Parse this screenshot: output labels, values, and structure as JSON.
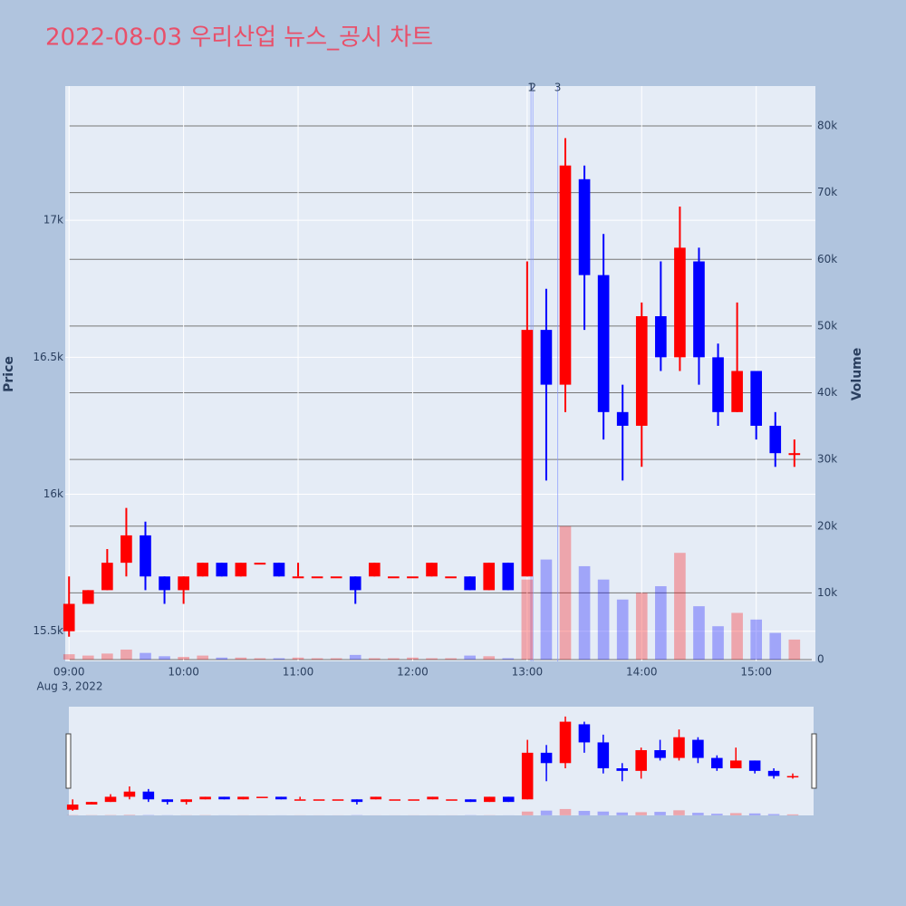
{
  "chart_data": {
    "type": "candlestick",
    "title": "2022-08-03 우리산업 뉴스_공시 차트",
    "y_label": "Price",
    "y2_label": "Volume",
    "x_date_label": "Aug 3, 2022",
    "increasing_color": "#ff0000",
    "decreasing_color": "#0000ff",
    "x": [
      "2022-08-03 09:00",
      "2022-08-03 09:10",
      "2022-08-03 09:20",
      "2022-08-03 09:30",
      "2022-08-03 09:40",
      "2022-08-03 09:50",
      "2022-08-03 10:00",
      "2022-08-03 10:10",
      "2022-08-03 10:20",
      "2022-08-03 10:30",
      "2022-08-03 10:40",
      "2022-08-03 10:50",
      "2022-08-03 11:00",
      "2022-08-03 11:10",
      "2022-08-03 11:20",
      "2022-08-03 11:30",
      "2022-08-03 11:40",
      "2022-08-03 11:50",
      "2022-08-03 12:00",
      "2022-08-03 12:10",
      "2022-08-03 12:20",
      "2022-08-03 12:30",
      "2022-08-03 12:40",
      "2022-08-03 12:50",
      "2022-08-03 13:00",
      "2022-08-03 13:10",
      "2022-08-03 13:20",
      "2022-08-03 13:30",
      "2022-08-03 13:40",
      "2022-08-03 13:50",
      "2022-08-03 14:00",
      "2022-08-03 14:10",
      "2022-08-03 14:20",
      "2022-08-03 14:30",
      "2022-08-03 14:40",
      "2022-08-03 14:50",
      "2022-08-03 15:00",
      "2022-08-03 15:10",
      "2022-08-03 15:20"
    ],
    "open": [
      15500,
      15600,
      15650,
      15750,
      15850,
      15700,
      15650,
      15700,
      15750,
      15700,
      15750,
      15750,
      15700,
      15700,
      15700,
      15700,
      15700,
      15700,
      15700,
      15700,
      15700,
      15700,
      15650,
      15750,
      15700,
      16600,
      16400,
      17150,
      16800,
      16300,
      16250,
      16650,
      16500,
      16850,
      16500,
      16300,
      16450,
      16250,
      16150
    ],
    "high": [
      15700,
      15650,
      15800,
      15950,
      15900,
      15700,
      15700,
      15750,
      15750,
      15750,
      15750,
      15750,
      15750,
      15700,
      15700,
      15700,
      15750,
      15700,
      15700,
      15750,
      15700,
      15700,
      15750,
      15750,
      16850,
      16750,
      17300,
      17200,
      16950,
      16400,
      16700,
      16850,
      17050,
      16900,
      16550,
      16700,
      16450,
      16300,
      16200
    ],
    "low": [
      15480,
      15600,
      15650,
      15700,
      15650,
      15600,
      15600,
      15700,
      15700,
      15700,
      15750,
      15700,
      15700,
      15700,
      15700,
      15600,
      15700,
      15700,
      15700,
      15700,
      15700,
      15650,
      15650,
      15650,
      15700,
      16050,
      16300,
      16600,
      16200,
      16050,
      16100,
      16450,
      16450,
      16400,
      16250,
      16300,
      16200,
      16100,
      16100
    ],
    "close": [
      15600,
      15650,
      15750,
      15850,
      15700,
      15650,
      15700,
      15750,
      15700,
      15750,
      15750,
      15700,
      15700,
      15700,
      15700,
      15650,
      15750,
      15700,
      15700,
      15750,
      15700,
      15650,
      15750,
      15650,
      16600,
      16400,
      17200,
      16800,
      16300,
      16250,
      16650,
      16500,
      16900,
      16500,
      16300,
      16450,
      16250,
      16150,
      16150
    ],
    "volume": [
      800,
      600,
      900,
      1500,
      1000,
      500,
      400,
      600,
      300,
      300,
      200,
      200,
      300,
      200,
      200,
      700,
      200,
      200,
      300,
      200,
      200,
      600,
      500,
      200,
      12000,
      15000,
      20000,
      14000,
      12000,
      9000,
      10000,
      11000,
      16000,
      8000,
      5000,
      7000,
      6000,
      4000,
      3000
    ],
    "xlim": [
      "2022-08-03 08:58",
      "2022-08-03 15:31"
    ],
    "xticks": [
      {
        "value": "2022-08-03 09:00",
        "label": "09:00"
      },
      {
        "value": "2022-08-03 10:00",
        "label": "10:00"
      },
      {
        "value": "2022-08-03 11:00",
        "label": "11:00"
      },
      {
        "value": "2022-08-03 12:00",
        "label": "12:00"
      },
      {
        "value": "2022-08-03 13:00",
        "label": "13:00"
      },
      {
        "value": "2022-08-03 14:00",
        "label": "14:00"
      },
      {
        "value": "2022-08-03 15:00",
        "label": "15:00"
      }
    ],
    "ylim": [
      15390,
      17490
    ],
    "yticks": [
      {
        "value": 15500,
        "label": "15.5k"
      },
      {
        "value": 16000,
        "label": "16k"
      },
      {
        "value": 16500,
        "label": "16.5k"
      },
      {
        "value": 17000,
        "label": "17k"
      }
    ],
    "y2lim": [
      -270,
      85980
    ],
    "y2ticks": [
      0,
      {
        "value": 10000,
        "label": "10k"
      },
      {
        "value": 20000,
        "label": "20k"
      },
      {
        "value": 30000,
        "label": "30k"
      },
      {
        "value": 40000,
        "label": "40k"
      },
      {
        "value": 50000,
        "label": "50k"
      },
      {
        "value": 60000,
        "label": "60k"
      },
      {
        "value": 70000,
        "label": "70k"
      },
      {
        "value": 80000,
        "label": "80k"
      }
    ],
    "annotations": [
      {
        "text": "1",
        "x": "2022-08-03 13:02"
      },
      {
        "text": "2",
        "x": "2022-08-03 13:03"
      },
      {
        "text": "3",
        "x": "2022-08-03 13:16"
      }
    ],
    "grid": true
  }
}
